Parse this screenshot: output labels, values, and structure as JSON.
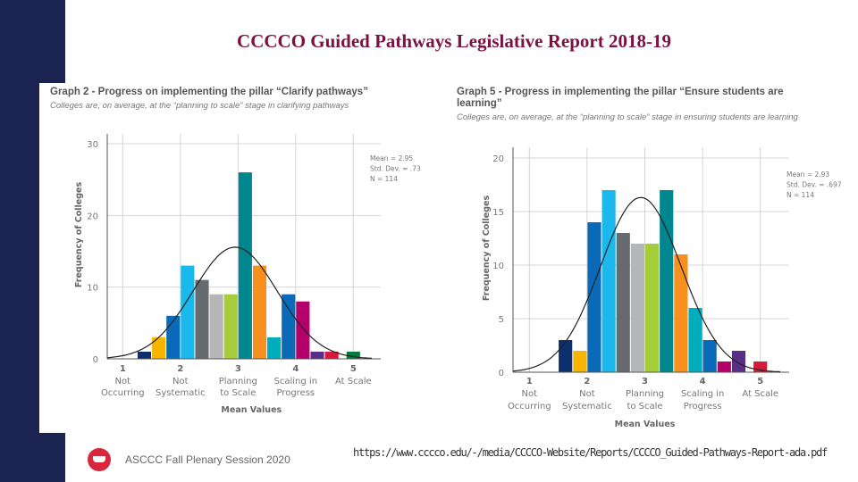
{
  "slide_title": "CCCCO Guided Pathways Legislative Report 2018-19",
  "footer": {
    "session": "ASCCC Fall Plenary Session 2020",
    "url": "https://www.cccco.edu/-/media/CCCCO-Website/Reports/CCCCO_Guided-Pathways-Report-ada.pdf",
    "logo_color": "#d7263d"
  },
  "chart_data": [
    {
      "type": "bar",
      "title": "Graph 2 - Progress on implementing the pillar “Clarify pathways”",
      "subtitle": "Colleges are, on average, at the “planning to scale” stage in clarifying pathways",
      "xlabel": "Mean Values",
      "ylabel": "Frequency of Colleges",
      "ylim": [
        0,
        30
      ],
      "yticks": [
        "0",
        "10",
        "20",
        "30"
      ],
      "xlim": [
        0.7,
        5.5
      ],
      "xticks": [
        {
          "num": "1",
          "label": [
            "Not",
            "Occurring"
          ]
        },
        {
          "num": "2",
          "label": [
            "Not",
            "Systematic"
          ]
        },
        {
          "num": "3",
          "label": [
            "Planning",
            "to Scale"
          ]
        },
        {
          "num": "4",
          "label": [
            "Scaling in",
            "Progress"
          ]
        },
        {
          "num": "5",
          "label": [
            "At Scale",
            ""
          ]
        }
      ],
      "grid": true,
      "stats": [
        "Mean = 2.95",
        "Std. Dev. = .73",
        "N = 114"
      ],
      "normal_curve": {
        "mean": 2.95,
        "sd": 0.73,
        "n": 114,
        "bin_width": 0.25
      },
      "x": [
        1.375,
        1.625,
        1.875,
        2.125,
        2.375,
        2.625,
        2.875,
        3.125,
        3.375,
        3.625,
        3.875,
        4.125,
        4.375,
        4.625,
        5.0
      ],
      "values": [
        1,
        3,
        6,
        13,
        11,
        9,
        9,
        26,
        13,
        3,
        9,
        8,
        1,
        1,
        1
      ],
      "colors": [
        "#0d2f6b",
        "#f7b500",
        "#0a6ab8",
        "#1bb8ec",
        "#676b6f",
        "#b5b6b8",
        "#a5cd39",
        "#00868f",
        "#f7901e",
        "#00adbd",
        "#0a6ab8",
        "#b5006c",
        "#5b2d8a",
        "#d7193a",
        "#007a3d"
      ]
    },
    {
      "type": "bar",
      "title": "Graph 5 - Progress in implementing the pillar “Ensure students are learning”",
      "subtitle": "Colleges are, on average, at the “planning to scale” stage in ensuring students are learning",
      "xlabel": "Mean Values",
      "ylabel": "Frequency of Colleges",
      "ylim": [
        0,
        20
      ],
      "yticks": [
        "0",
        "5",
        "10",
        "15",
        "20"
      ],
      "xlim": [
        0.7,
        5.5
      ],
      "xticks": [
        {
          "num": "1",
          "label": [
            "Not",
            "Occurring"
          ]
        },
        {
          "num": "2",
          "label": [
            "Not",
            "Systematic"
          ]
        },
        {
          "num": "3",
          "label": [
            "Planning",
            "to Scale"
          ]
        },
        {
          "num": "4",
          "label": [
            "Scaling in",
            "Progress"
          ]
        },
        {
          "num": "5",
          "label": [
            "At Scale",
            ""
          ]
        }
      ],
      "grid": true,
      "stats": [
        "Mean = 2.93",
        "Std. Dev. = .697",
        "N = 114"
      ],
      "normal_curve": {
        "mean": 2.93,
        "sd": 0.697,
        "n": 114,
        "bin_width": 0.25
      },
      "x": [
        1.625,
        1.875,
        2.125,
        2.375,
        2.625,
        2.875,
        3.125,
        3.375,
        3.625,
        3.875,
        4.125,
        4.375,
        4.625,
        5.0
      ],
      "values": [
        3,
        2,
        14,
        17,
        13,
        12,
        12,
        17,
        11,
        6,
        3,
        1,
        2,
        1
      ],
      "colors": [
        "#0d2f6b",
        "#f7b500",
        "#0a6ab8",
        "#1bb8ec",
        "#676b6f",
        "#b5b6b8",
        "#a5cd39",
        "#00868f",
        "#f7901e",
        "#00adbd",
        "#0a6ab8",
        "#b5006c",
        "#5b2d8a",
        "#d7193a"
      ]
    }
  ]
}
